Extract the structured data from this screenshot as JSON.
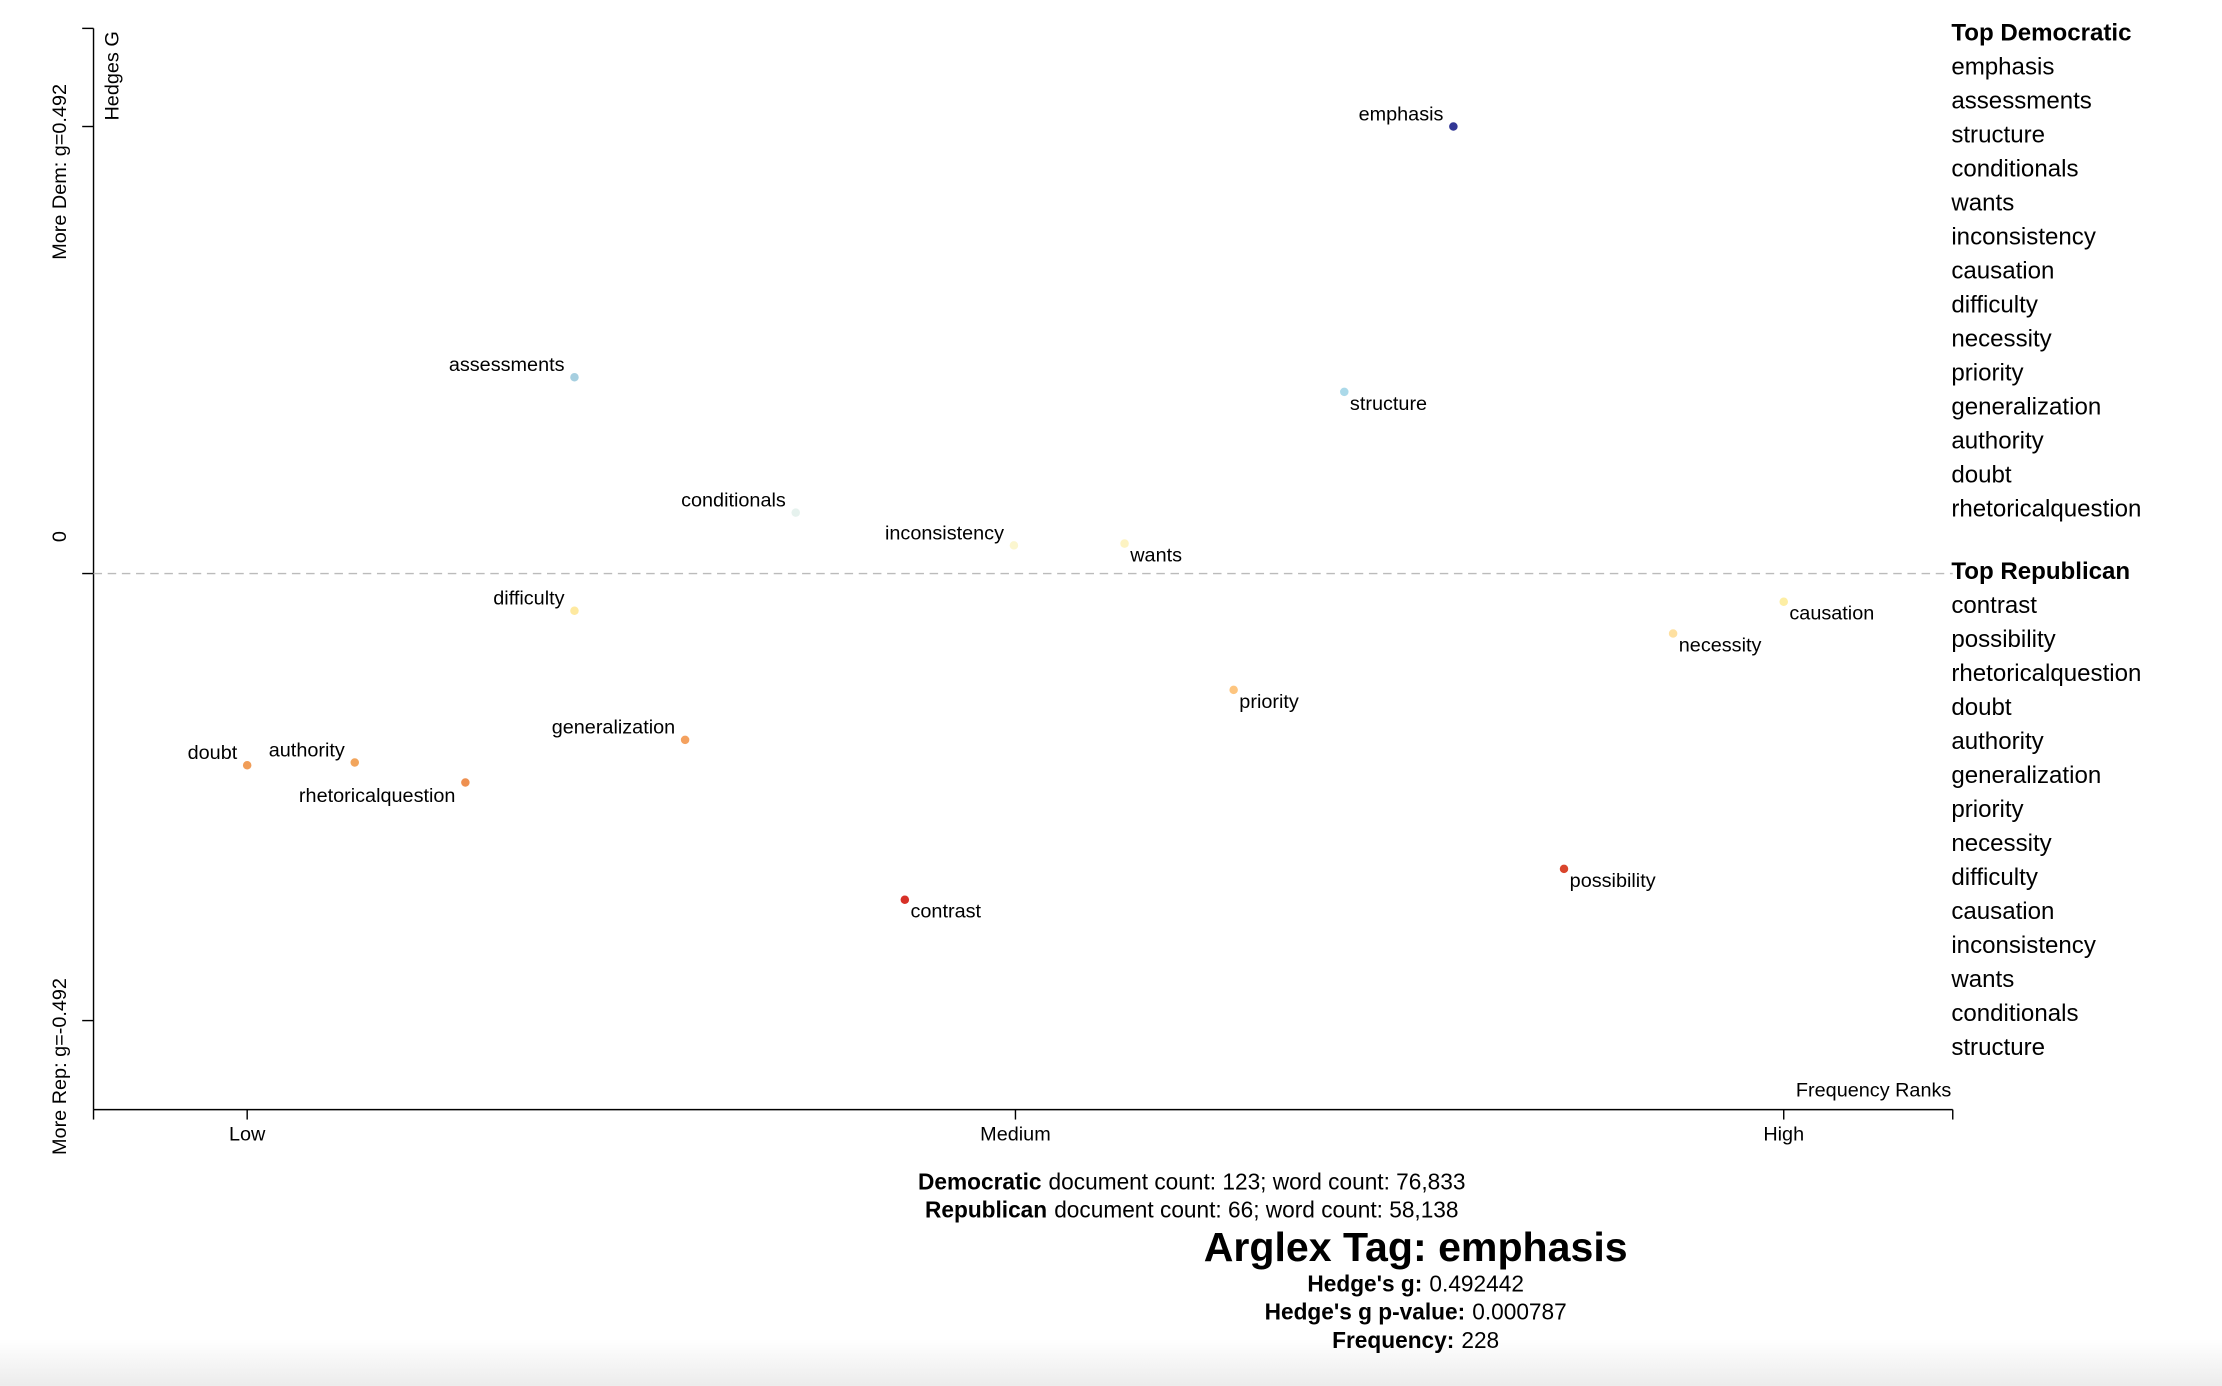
{
  "chart_data": {
    "type": "scatter",
    "xlabel": "Frequency Ranks",
    "ylabel": "Hedges G",
    "labels": [
      "emphasis",
      "assessments",
      "structure",
      "conditionals",
      "inconsistency",
      "wants",
      "difficulty",
      "causation",
      "necessity",
      "priority",
      "generalization",
      "doubt",
      "authority",
      "rhetoricalquestion",
      "contrast",
      "possibility"
    ],
    "x": [
      0.785,
      0.213,
      0.714,
      0.357,
      0.499,
      0.571,
      0.213,
      1.0,
      0.928,
      0.642,
      0.285,
      0.0,
      0.07,
      0.142,
      0.428,
      0.857
    ],
    "values": [
      0.492,
      0.216,
      0.2,
      0.067,
      0.031,
      0.033,
      -0.041,
      -0.031,
      -0.066,
      -0.128,
      -0.183,
      -0.211,
      -0.208,
      -0.23,
      -0.359,
      -0.325
    ],
    "colors": [
      "#313695",
      "#a6cfe0",
      "#abd9e9",
      "#e6f2ee",
      "#fbf6cf",
      "#fdf3c2",
      "#fee9a0",
      "#fdeea4",
      "#fee0a0",
      "#fdc57f",
      "#f4a15f",
      "#f09d58",
      "#f2a55c",
      "#ee9050",
      "#d73027",
      "#d9452c"
    ],
    "xlim": [
      -0.1,
      1.11
    ],
    "ylim": [
      -0.59,
      0.6
    ],
    "xticks": [
      {
        "value": 0,
        "label": "Low"
      },
      {
        "value": 0.5,
        "label": "Medium"
      },
      {
        "value": 1,
        "label": "High"
      }
    ],
    "yticks": [
      {
        "value": -0.492,
        "label": "More Rep: g=-0.492"
      },
      0,
      {
        "value": 0.492,
        "label": "More Dem: g=0.492"
      }
    ],
    "zero_line": true
  },
  "top_democratic": {
    "title": "Top Democratic",
    "terms": [
      "emphasis",
      "assessments",
      "structure",
      "conditionals",
      "wants",
      "inconsistency",
      "causation",
      "difficulty",
      "necessity",
      "priority",
      "generalization",
      "authority",
      "doubt",
      "rhetoricalquestion"
    ]
  },
  "top_republican": {
    "title": "Top Republican",
    "terms": [
      "contrast",
      "possibility",
      "rhetoricalquestion",
      "doubt",
      "authority",
      "generalization",
      "priority",
      "necessity",
      "difficulty",
      "causation",
      "inconsistency",
      "wants",
      "conditionals",
      "structure"
    ]
  },
  "corpus_stats": [
    {
      "name": "Democratic",
      "text": "document count: 123; word count: 76,833"
    },
    {
      "name": "Republican",
      "text": "document count: 66; word count: 58,138"
    }
  ],
  "selected": {
    "title": "Arglex Tag: emphasis",
    "stats": [
      {
        "label": "Hedge's g:",
        "value": "0.492442"
      },
      {
        "label": "Hedge's g p-value:",
        "value": "0.000787"
      },
      {
        "label": "Frequency:",
        "value": "228"
      }
    ]
  }
}
